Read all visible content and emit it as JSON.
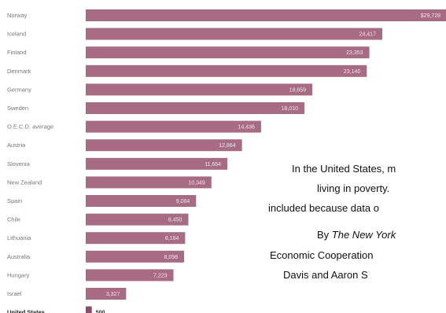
{
  "chart_data": {
    "type": "bar",
    "orientation": "horizontal",
    "categories": [
      "Norway",
      "Iceland",
      "Finland",
      "Denmark",
      "Germany",
      "Sweden",
      "O.E.C.D. average",
      "Austria",
      "Slovenia",
      "New Zealand",
      "Spain",
      "Chile",
      "Lithuania",
      "Australia",
      "Hungary",
      "Israel",
      "United States"
    ],
    "values": [
      29728,
      24417,
      23353,
      23140,
      18659,
      18010,
      14436,
      12864,
      11664,
      10349,
      9084,
      8450,
      8184,
      8098,
      7223,
      3327,
      500
    ],
    "value_labels": [
      "$29,728",
      "24,417",
      "23,353",
      "23,140",
      "18,659",
      "18,010",
      "14,436",
      "12,864",
      "11,664",
      "10,349",
      "9,084",
      "8,450",
      "8,184",
      "8,098",
      "7,223",
      "3,327",
      "500"
    ],
    "highlight": "United States",
    "xlim": [
      0,
      29728
    ],
    "grid": false,
    "legend": "none",
    "colors": {
      "bar": "#a86b84",
      "label": "#777777",
      "highlight_label": "#222222"
    }
  },
  "caption": {
    "line1": "In the United States, m",
    "line2": "living in poverty.",
    "line3": "included because data o",
    "line4_prefix": "By ",
    "line4_source": "The New York",
    "line5": "Economic Cooperation",
    "line6": "Davis and Aaron S"
  }
}
